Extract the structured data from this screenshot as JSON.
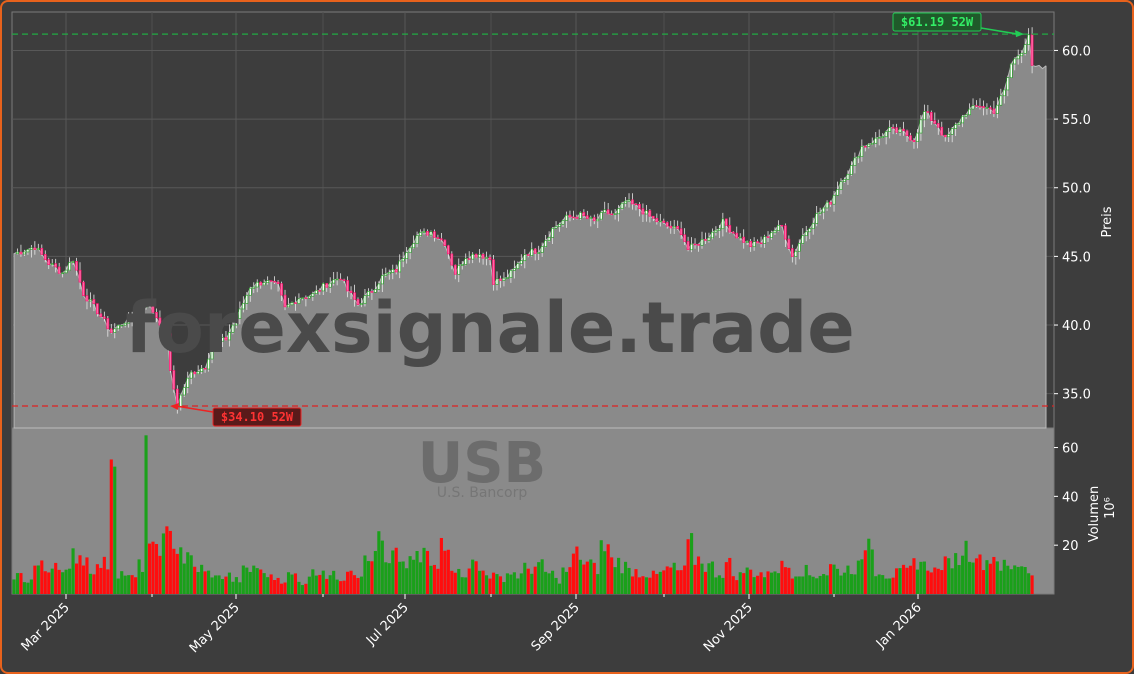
{
  "chart_data": {
    "type": "candlestick",
    "symbol": "USB",
    "company": "U.S. Bancorp",
    "watermark": "forexsignale.trade",
    "price_axis": {
      "label": "Preis",
      "ylim": [
        32.5,
        62.8
      ],
      "ticks": [
        "35.0",
        "40.0",
        "45.0",
        "50.0",
        "55.0",
        "60.0"
      ]
    },
    "volume_axis": {
      "label": "Volumen",
      "unit": "10⁶",
      "ylim": [
        0,
        68
      ],
      "ticks": [
        "20",
        "40",
        "60"
      ]
    },
    "x_axis": {
      "ticks": [
        "Mar 2025",
        "May 2025",
        "Jul 2025",
        "Sep 2025",
        "Nov 2025",
        "Jan 2026"
      ]
    },
    "high_52w": {
      "value": 61.19,
      "label": "$61.19 52W",
      "color": "#22aa44"
    },
    "low_52w": {
      "value": 34.1,
      "label": "$34.10 52W",
      "color": "#dd2222"
    },
    "colors": {
      "up": "#1aa01a",
      "down": "#ff0d0d",
      "area": "#8a8a8a",
      "background": "#3d3d3d",
      "grid": "#5a5a5a"
    },
    "price_path": [
      [
        0,
        45.2
      ],
      [
        6,
        45.7
      ],
      [
        10,
        44.5
      ],
      [
        14,
        43.8
      ],
      [
        17,
        44.8
      ],
      [
        20,
        42.3
      ],
      [
        24,
        41.0
      ],
      [
        28,
        39.5
      ],
      [
        32,
        40.3
      ],
      [
        35,
        40.6
      ],
      [
        38,
        41.8
      ],
      [
        42,
        40.2
      ],
      [
        44,
        39.5
      ],
      [
        45,
        36.5
      ],
      [
        47,
        34.2
      ],
      [
        49,
        35.5
      ],
      [
        51,
        36.5
      ],
      [
        55,
        37.0
      ],
      [
        57,
        38.5
      ],
      [
        61,
        39.0
      ],
      [
        65,
        41.0
      ],
      [
        68,
        42.8
      ],
      [
        72,
        43.2
      ],
      [
        76,
        42.8
      ],
      [
        78,
        41.2
      ],
      [
        82,
        42.0
      ],
      [
        86,
        42.2
      ],
      [
        90,
        43.0
      ],
      [
        94,
        43.5
      ],
      [
        96,
        42.5
      ],
      [
        99,
        41.5
      ],
      [
        103,
        42.5
      ],
      [
        106,
        43.5
      ],
      [
        110,
        44.0
      ],
      [
        113,
        45.5
      ],
      [
        116,
        46.5
      ],
      [
        120,
        46.8
      ],
      [
        124,
        46.0
      ],
      [
        126,
        44.5
      ],
      [
        127,
        43.8
      ],
      [
        130,
        45.0
      ],
      [
        134,
        45.2
      ],
      [
        137,
        44.8
      ],
      [
        138,
        43.2
      ],
      [
        141,
        43.3
      ],
      [
        144,
        44.0
      ],
      [
        147,
        45.2
      ],
      [
        151,
        45.5
      ],
      [
        155,
        47.0
      ],
      [
        159,
        47.8
      ],
      [
        163,
        48.0
      ],
      [
        167,
        47.5
      ],
      [
        170,
        48.2
      ],
      [
        173,
        48.0
      ],
      [
        176,
        49.0
      ],
      [
        180,
        48.5
      ],
      [
        184,
        47.7
      ],
      [
        188,
        47.2
      ],
      [
        192,
        46.8
      ],
      [
        194,
        45.5
      ],
      [
        196,
        45.8
      ],
      [
        200,
        46.5
      ],
      [
        204,
        47.5
      ],
      [
        208,
        46.5
      ],
      [
        212,
        45.8
      ],
      [
        215,
        46.0
      ],
      [
        218,
        46.8
      ],
      [
        221,
        47.2
      ],
      [
        224,
        45.0
      ],
      [
        227,
        46.5
      ],
      [
        231,
        48.0
      ],
      [
        235,
        49.0
      ],
      [
        238,
        50.5
      ],
      [
        241,
        51.5
      ],
      [
        244,
        53.0
      ],
      [
        248,
        53.5
      ],
      [
        252,
        54.2
      ],
      [
        256,
        54.0
      ],
      [
        259,
        53.5
      ],
      [
        262,
        55.5
      ],
      [
        266,
        54.5
      ],
      [
        268,
        53.5
      ],
      [
        271,
        54.5
      ],
      [
        274,
        55.5
      ],
      [
        278,
        56.0
      ],
      [
        282,
        55.6
      ],
      [
        285,
        57.0
      ],
      [
        287,
        59.0
      ],
      [
        290,
        60.0
      ],
      [
        292,
        61.2
      ],
      [
        293,
        58.7
      ],
      [
        297,
        58.7
      ]
    ],
    "volume_bars_sample": [
      8,
      6,
      12,
      10,
      14,
      9,
      17,
      15,
      11,
      13,
      65,
      9,
      7,
      12,
      18,
      22,
      24,
      20,
      15,
      11,
      9,
      7,
      8,
      6,
      10,
      12,
      9,
      7,
      6,
      8,
      5,
      9,
      11,
      8,
      7,
      12,
      9,
      14,
      22,
      12,
      16,
      13,
      15,
      18,
      11,
      24,
      12,
      9,
      13,
      10,
      8,
      7,
      9,
      8,
      11,
      12,
      9,
      6,
      10,
      17,
      13,
      11,
      20,
      14,
      12,
      10,
      9,
      8,
      9,
      11,
      10,
      21,
      15,
      12,
      9,
      13,
      8,
      10,
      9,
      8,
      11,
      12,
      9,
      10,
      8,
      9,
      12,
      10,
      11,
      12,
      23,
      10,
      8,
      9,
      10,
      14,
      12,
      10,
      13,
      15,
      20,
      18,
      14,
      16,
      12,
      11,
      13,
      9
    ]
  }
}
